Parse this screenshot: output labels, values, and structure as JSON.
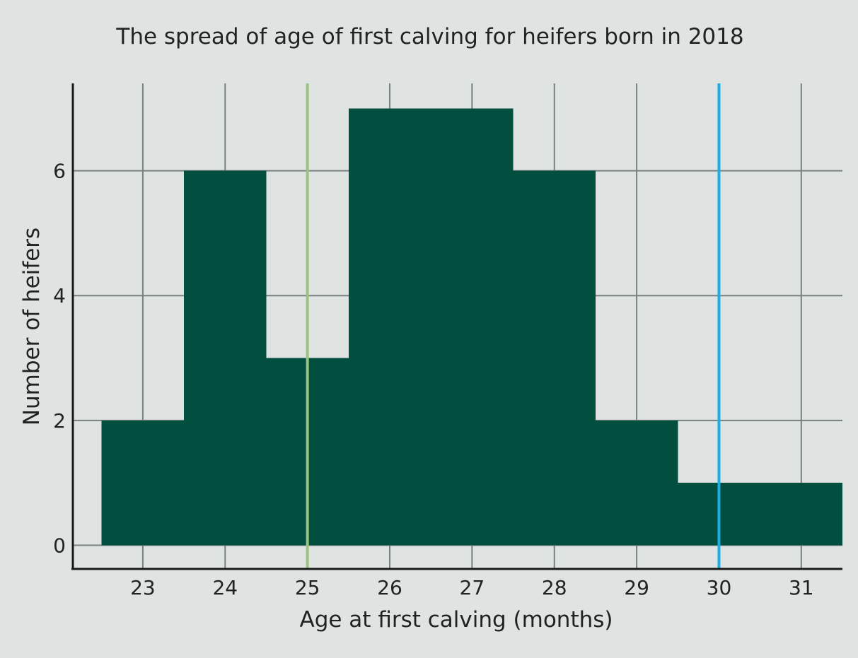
{
  "chart_data": {
    "type": "bar",
    "title": "The spread of age of first calving for heifers born in 2018",
    "xlabel": "Age at first calving (months)",
    "ylabel": "Number of heifers",
    "categories": [
      "23",
      "24",
      "25",
      "26",
      "27",
      "28",
      "29",
      "30",
      "31"
    ],
    "bins": [
      {
        "x": 23,
        "value": 2
      },
      {
        "x": 24,
        "value": 6
      },
      {
        "x": 25,
        "value": 3
      },
      {
        "x": 26,
        "value": 7
      },
      {
        "x": 27,
        "value": 7
      },
      {
        "x": 28,
        "value": 6
      },
      {
        "x": 29,
        "value": 2
      },
      {
        "x": 30,
        "value": 1
      },
      {
        "x": 31,
        "value": 1
      }
    ],
    "x_ticks": [
      "23",
      "24",
      "25",
      "26",
      "27",
      "28",
      "29",
      "30",
      "31"
    ],
    "y_ticks": [
      "0",
      "2",
      "4",
      "6"
    ],
    "xlim": [
      22.15,
      31.5
    ],
    "ylim": [
      -0.38,
      7.4
    ],
    "grid": true,
    "reference_lines": [
      {
        "x": 25,
        "color": "#9dc183"
      },
      {
        "x": 30,
        "color": "#1aaee5"
      }
    ],
    "colors": {
      "background": "#dfe4e3",
      "bar": "#024f40",
      "grid": "#7a7f80",
      "axis": "#1a1a1a"
    }
  }
}
